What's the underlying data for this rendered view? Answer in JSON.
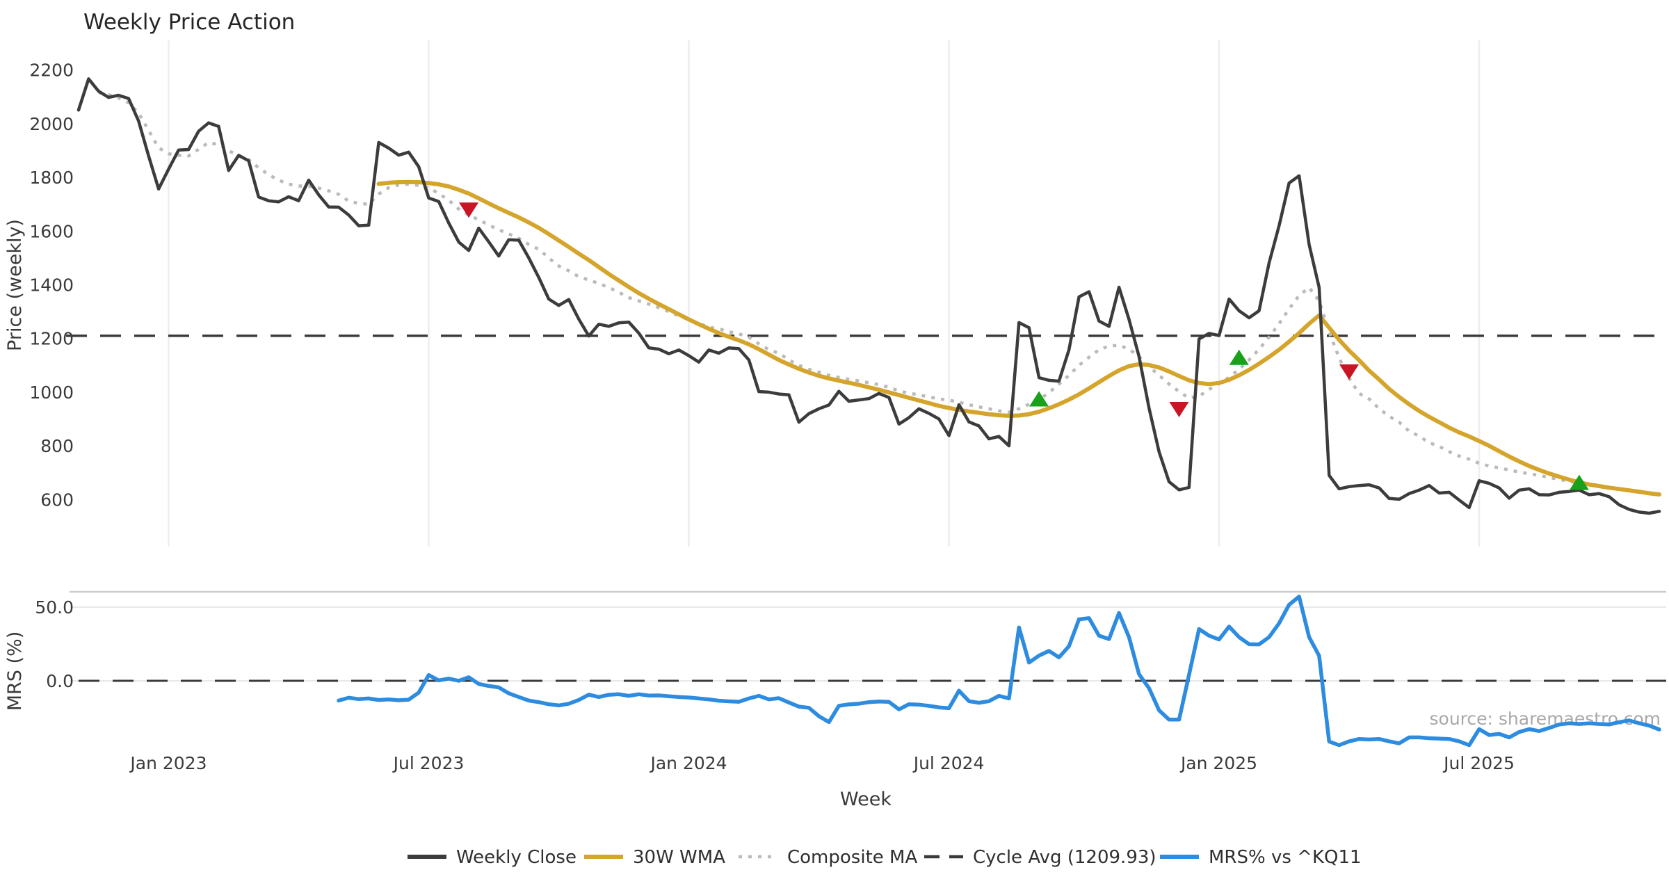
{
  "title": "Weekly Price Action",
  "source": "source: sharemaestro.com",
  "xlabel": "Week",
  "price_panel": {
    "ylabel": "Price (weekly)",
    "yticks": [
      600,
      800,
      1000,
      1200,
      1400,
      1600,
      1800,
      2000,
      2200
    ],
    "cycle_avg": 1209.93
  },
  "mrs_panel": {
    "ylabel": "MRS (%)",
    "yticks": [
      0.0,
      50.0
    ],
    "zero_line": 0.0
  },
  "legend": [
    {
      "label": "Weekly Close",
      "color": "#3c3c3c",
      "line_style": "solid"
    },
    {
      "label": "30W WMA",
      "color": "#d5a42b",
      "line_style": "solid"
    },
    {
      "label": "Composite MA",
      "color": "#bababa",
      "line_style": "dotted"
    },
    {
      "label": "Cycle Avg (1209.93)",
      "color": "#3a3a3a",
      "line_style": "dashed"
    },
    {
      "label": "MRS% vs ^KQ11",
      "color": "#2d8ce0",
      "line_style": "solid"
    }
  ],
  "colors": {
    "weekly_close": "#3c3c3c",
    "wma": "#d5a42b",
    "composite": "#bababa",
    "cycle_avg": "#3a3a3a",
    "mrs": "#2d8ce0",
    "buy_marker": "#1aa01a",
    "sell_marker": "#c81624",
    "grid": "#ededf2",
    "panel_border": "#cbcbcb",
    "light_grid": "#e8e8e8"
  },
  "chart_data": {
    "type": "line",
    "x_unit": "week_index",
    "n_weeks": 159,
    "xticks": [
      {
        "label": "Jan 2023",
        "index": 9
      },
      {
        "label": "Jul 2023",
        "index": 35
      },
      {
        "label": "Jan 2024",
        "index": 61
      },
      {
        "label": "Jul 2024",
        "index": 87
      },
      {
        "label": "Jan 2025",
        "index": 114
      },
      {
        "label": "Jul 2025",
        "index": 140
      }
    ],
    "series": [
      {
        "name": "Weekly Close",
        "panel": "price",
        "start_index": 0,
        "values": [
          2051,
          2167,
          2121,
          2098,
          2106,
          2094,
          2010,
          1880,
          1757,
          1831,
          1902,
          1904,
          1972,
          2003,
          1990,
          1826,
          1882,
          1862,
          1727,
          1713,
          1709,
          1728,
          1713,
          1790,
          1735,
          1690,
          1689,
          1660,
          1620,
          1622,
          1930,
          1909,
          1883,
          1894,
          1840,
          1723,
          1710,
          1630,
          1559,
          1528,
          1611,
          1560,
          1507,
          1568,
          1566,
          1500,
          1427,
          1347,
          1323,
          1345,
          1272,
          1209,
          1253,
          1245,
          1258,
          1261,
          1220,
          1165,
          1160,
          1143,
          1157,
          1136,
          1112,
          1157,
          1145,
          1165,
          1162,
          1120,
          1002,
          1000,
          993,
          990,
          888,
          920,
          938,
          952,
          1003,
          966,
          971,
          976,
          995,
          980,
          881,
          905,
          938,
          921,
          900,
          838,
          953,
          889,
          874,
          826,
          835,
          800,
          1259,
          1240,
          1054,
          1044,
          1041,
          1158,
          1355,
          1374,
          1265,
          1245,
          1391,
          1271,
          1133,
          941,
          778,
          666,
          636,
          645,
          1198,
          1219,
          1211,
          1347,
          1303,
          1277,
          1303,
          1481,
          1620,
          1779,
          1806,
          1550,
          1390,
          690,
          640,
          648,
          652,
          655,
          643,
          604,
          601,
          622,
          635,
          652,
          624,
          627,
          598,
          570,
          670,
          660,
          643,
          605,
          635,
          640,
          618,
          617,
          627,
          630,
          635,
          618,
          622,
          610,
          580,
          563,
          553,
          549,
          556
        ]
      },
      {
        "name": "30W WMA",
        "panel": "price",
        "start_index": 30,
        "values": [
          1776,
          1780,
          1782,
          1783,
          1782,
          1779,
          1774,
          1766,
          1754,
          1740,
          1722,
          1703,
          1685,
          1668,
          1651,
          1632,
          1612,
          1589,
          1565,
          1541,
          1516,
          1492,
          1466,
          1440,
          1416,
          1392,
          1369,
          1348,
          1328,
          1309,
          1290,
          1271,
          1253,
          1236,
          1220,
          1206,
          1193,
          1178,
          1160,
          1140,
          1120,
          1103,
          1087,
          1073,
          1061,
          1051,
          1043,
          1035,
          1027,
          1018,
          1009,
          999,
          989,
          979,
          969,
          959,
          949,
          941,
          934,
          928,
          923,
          918,
          914,
          912,
          913,
          918,
          927,
          940,
          955,
          972,
          992,
          1014,
          1037,
          1060,
          1081,
          1097,
          1104,
          1101,
          1092,
          1077,
          1060,
          1044,
          1034,
          1030,
          1034,
          1046,
          1063,
          1083,
          1106,
          1131,
          1158,
          1188,
          1220,
          1255,
          1286,
          1240,
          1195,
          1155,
          1119,
          1080,
          1047,
          1012,
          982,
          955,
          930,
          908,
          888,
          868,
          850,
          835,
          818,
          800,
          780,
          760,
          742,
          725,
          710,
          697,
          685,
          674,
          664,
          656,
          650,
          644,
          639,
          634,
          629,
          623,
          619
        ]
      },
      {
        "name": "Composite MA",
        "panel": "price",
        "start_index": 2,
        "values": [
          2116,
          2108,
          2096,
          2078,
          2040,
          1975,
          1910,
          1888,
          1882,
          1880,
          1905,
          1930,
          1922,
          1900,
          1880,
          1866,
          1836,
          1810,
          1790,
          1775,
          1768,
          1768,
          1760,
          1750,
          1737,
          1712,
          1703,
          1700,
          1738,
          1762,
          1772,
          1775,
          1770,
          1762,
          1740,
          1715,
          1682,
          1660,
          1642,
          1623,
          1605,
          1590,
          1573,
          1550,
          1532,
          1500,
          1470,
          1452,
          1430,
          1418,
          1405,
          1390,
          1372,
          1352,
          1340,
          1328,
          1315,
          1300,
          1284,
          1270,
          1256,
          1242,
          1236,
          1225,
          1217,
          1205,
          1180,
          1158,
          1145,
          1120,
          1100,
          1085,
          1075,
          1063,
          1055,
          1048,
          1042,
          1035,
          1028,
          1018,
          1005,
          996,
          990,
          982,
          975,
          970,
          963,
          953,
          945,
          938,
          930,
          925,
          938,
          955,
          972,
          998,
          1030,
          1063,
          1100,
          1130,
          1158,
          1172,
          1175,
          1160,
          1133,
          1095,
          1063,
          1030,
          1002,
          978,
          985,
          1010,
          1032,
          1055,
          1085,
          1120,
          1160,
          1205,
          1255,
          1310,
          1360,
          1390,
          1340,
          1225,
          1128,
          1052,
          995,
          975,
          938,
          910,
          888,
          855,
          836,
          812,
          798,
          778,
          762,
          750,
          735,
          725,
          718,
          710,
          702,
          696,
          690,
          682,
          675,
          668,
          660,
          654,
          650,
          645,
          640,
          634,
          629,
          625,
          622
        ]
      },
      {
        "name": "MRS% vs ^KQ11",
        "panel": "mrs",
        "start_index": 26,
        "values": [
          -13.4,
          -11.5,
          -12.4,
          -12.0,
          -13.0,
          -12.6,
          -13.2,
          -12.8,
          -8.0,
          3.9,
          0.3,
          1.5,
          0.0,
          2.4,
          -2.1,
          -3.5,
          -4.5,
          -8.5,
          -11.0,
          -13.4,
          -14.5,
          -15.9,
          -16.7,
          -15.5,
          -13.0,
          -9.4,
          -11.0,
          -9.5,
          -9.1,
          -10.2,
          -9.1,
          -10.0,
          -9.9,
          -10.5,
          -11.0,
          -11.3,
          -12.0,
          -12.6,
          -13.5,
          -13.9,
          -14.2,
          -12.0,
          -10.2,
          -12.6,
          -11.8,
          -14.7,
          -17.5,
          -18.3,
          -24.0,
          -28.0,
          -17.0,
          -16.0,
          -15.5,
          -14.5,
          -14.0,
          -14.3,
          -19.4,
          -15.9,
          -16.2,
          -17.0,
          -18.0,
          -18.6,
          -6.7,
          -13.8,
          -14.9,
          -13.8,
          -10.2,
          -12.0,
          36.2,
          12.4,
          17.1,
          20.3,
          15.9,
          23.5,
          41.7,
          42.5,
          30.6,
          28.3,
          46.0,
          29.6,
          4.5,
          -5.0,
          -20.0,
          -26.3,
          -26.3,
          4.0,
          35.1,
          30.6,
          28.0,
          36.8,
          29.6,
          24.8,
          24.7,
          29.6,
          39.0,
          51.6,
          57.1,
          29.6,
          17.0,
          -41.2,
          -43.7,
          -41.1,
          -39.5,
          -39.8,
          -39.5,
          -41.1,
          -42.4,
          -38.4,
          -38.4,
          -38.9,
          -39.2,
          -39.5,
          -41.1,
          -43.7,
          -32.8,
          -36.8,
          -36.0,
          -38.4,
          -34.7,
          -32.8,
          -34.1,
          -32.0,
          -29.6,
          -28.8,
          -29.3,
          -28.8,
          -29.3,
          -29.6,
          -28.0,
          -26.9,
          -28.8,
          -30.4,
          -33.0
        ]
      }
    ],
    "markers": {
      "sell": [
        {
          "index": 39,
          "value": 1678
        },
        {
          "index": 110,
          "value": 935
        },
        {
          "index": 127,
          "value": 1075
        }
      ],
      "buy": [
        {
          "index": 96,
          "value": 975
        },
        {
          "index": 116,
          "value": 1130
        },
        {
          "index": 150,
          "value": 664
        }
      ]
    }
  }
}
